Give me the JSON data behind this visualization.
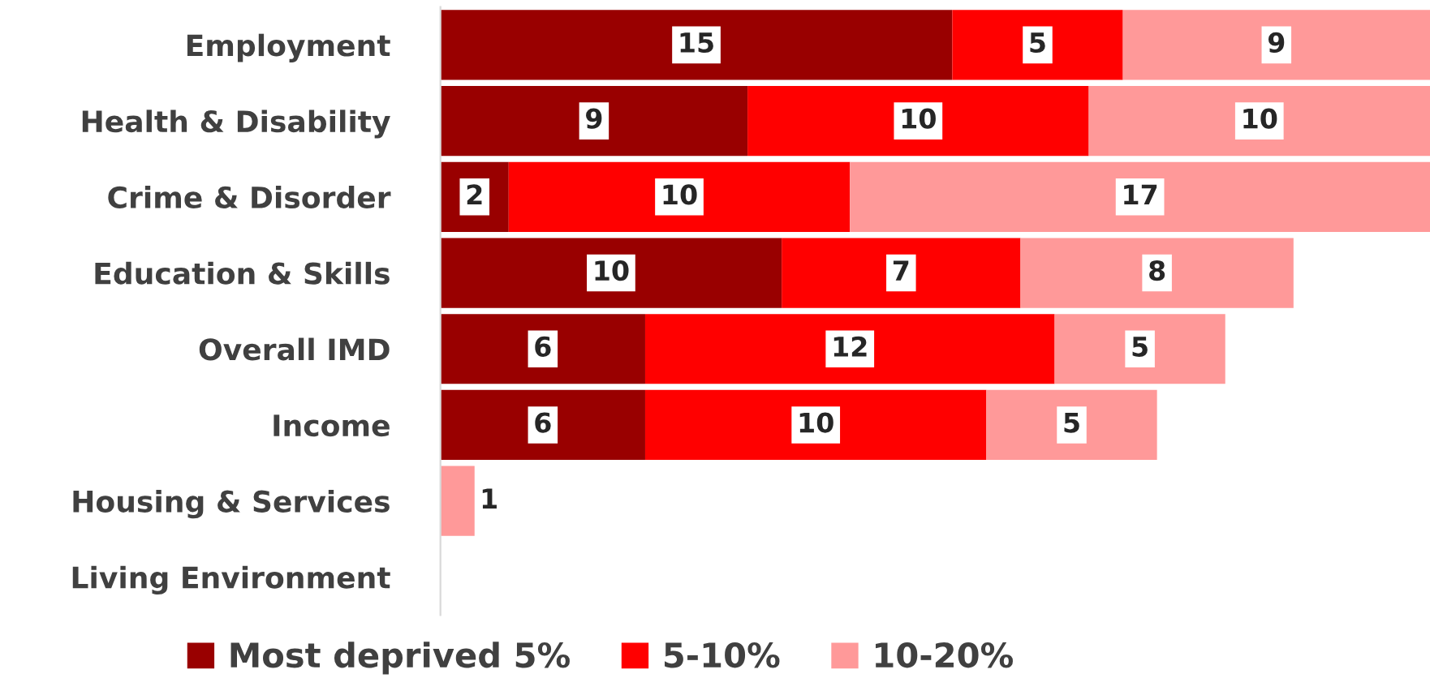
{
  "chart_data": {
    "type": "bar",
    "orientation": "horizontal",
    "stacked": true,
    "categories": [
      "Employment",
      "Health & Disability",
      "Crime & Disorder",
      "Education & Skills",
      "Overall IMD",
      "Income",
      "Housing & Services",
      "Living Environment"
    ],
    "series": [
      {
        "name": "Most deprived 5%",
        "color": "#990000",
        "values": [
          15,
          9,
          2,
          10,
          6,
          6,
          0,
          0
        ],
        "value_labels": [
          "15",
          "9",
          "2",
          "10",
          "6",
          "6",
          null,
          null
        ]
      },
      {
        "name": "5-10%",
        "color": "#ff0000",
        "values": [
          5,
          10,
          10,
          7,
          12,
          10,
          0,
          0
        ],
        "value_labels": [
          "5",
          "10",
          "10",
          "7",
          "12",
          "10",
          null,
          null
        ]
      },
      {
        "name": "10-20%",
        "color": "#ff9999",
        "values": [
          9,
          10,
          17,
          8,
          5,
          5,
          1,
          0
        ],
        "value_labels": [
          "9",
          "10",
          "17",
          "8",
          "5",
          "5",
          "1",
          null
        ]
      }
    ],
    "legend": "bottom",
    "grid": false
  }
}
